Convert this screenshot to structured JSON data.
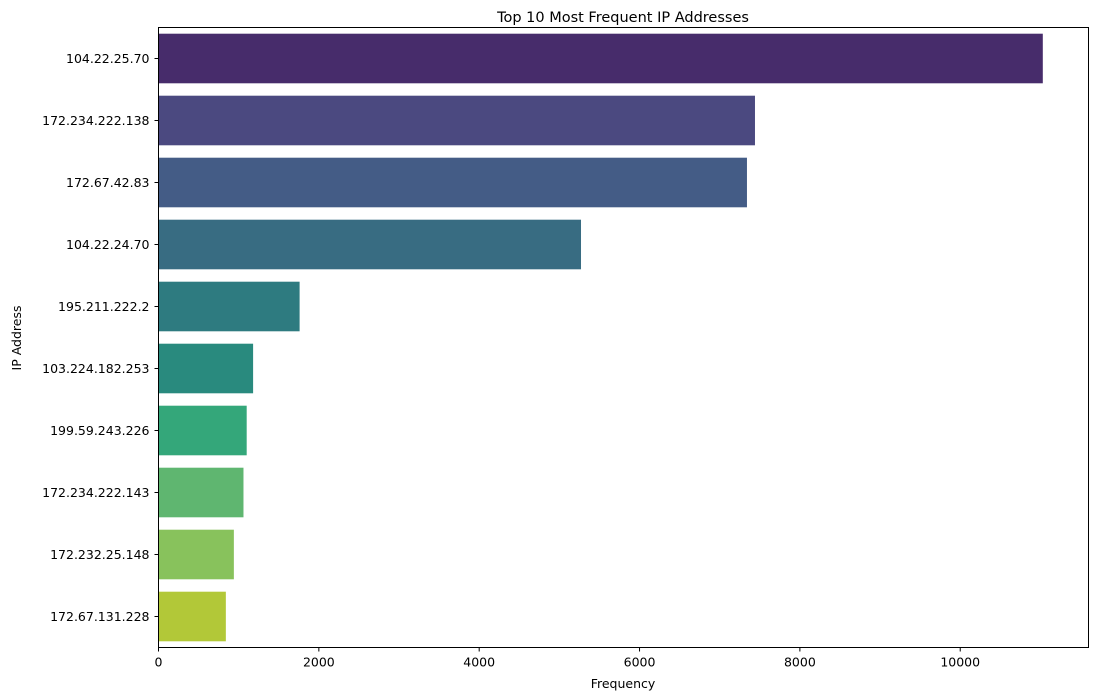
{
  "chart_data": {
    "type": "bar",
    "orientation": "horizontal",
    "title": "Top 10 Most Frequent IP Addresses",
    "xlabel": "Frequency",
    "ylabel": "IP Address",
    "xlim": [
      0,
      11600
    ],
    "xticks": [
      0,
      2000,
      4000,
      6000,
      8000,
      10000
    ],
    "xtick_labels": [
      "0",
      "2000",
      "4000",
      "6000",
      "8000",
      "10000"
    ],
    "grid": false,
    "legend": "none",
    "categories": [
      "104.22.25.70",
      "172.234.222.138",
      "172.67.42.83",
      "104.22.24.70",
      "195.211.222.2",
      "103.224.182.253",
      "199.59.243.226",
      "172.234.222.143",
      "172.232.25.148",
      "172.67.131.228"
    ],
    "values": [
      11030,
      7440,
      7340,
      5270,
      1760,
      1180,
      1100,
      1060,
      940,
      840
    ],
    "colors": [
      "#472c6b",
      "#4b4980",
      "#445c86",
      "#386c82",
      "#2e7b80",
      "#298a7e",
      "#34a77a",
      "#5fb670",
      "#88c25c",
      "#b2c838"
    ]
  }
}
